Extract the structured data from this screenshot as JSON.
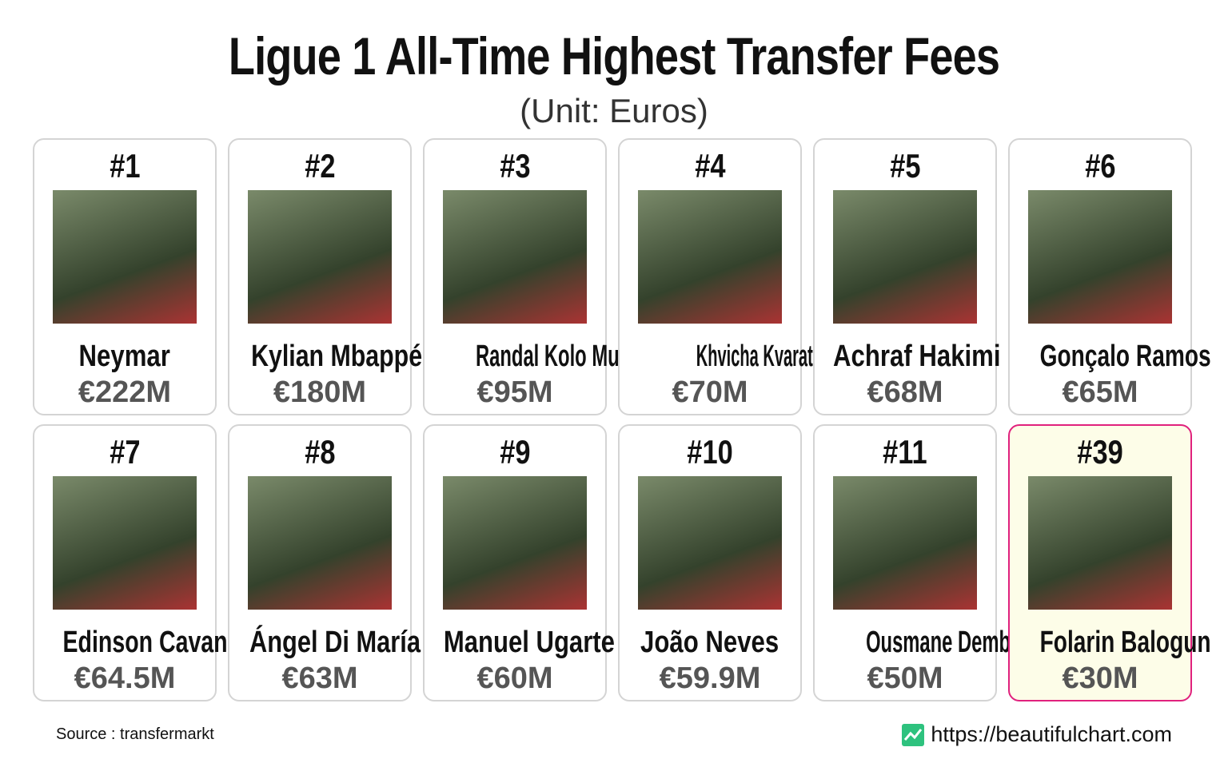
{
  "header": {
    "title": "Ligue 1 All-Time Highest Transfer Fees",
    "subtitle": "(Unit: Euros)"
  },
  "cards": [
    {
      "rank": "#1",
      "name": "Neymar",
      "fee": "€222M"
    },
    {
      "rank": "#2",
      "name": "Kylian Mbappé",
      "fee": "€180M"
    },
    {
      "rank": "#3",
      "name": "Randal Kolo Muani",
      "fee": "€95M"
    },
    {
      "rank": "#4",
      "name": "Khvicha Kvaratskhelia",
      "fee": "€70M"
    },
    {
      "rank": "#5",
      "name": "Achraf Hakimi",
      "fee": "€68M"
    },
    {
      "rank": "#6",
      "name": "Gonçalo Ramos",
      "fee": "€65M"
    },
    {
      "rank": "#7",
      "name": "Edinson Cavani",
      "fee": "€64.5M"
    },
    {
      "rank": "#8",
      "name": "Ángel Di María",
      "fee": "€63M"
    },
    {
      "rank": "#9",
      "name": "Manuel Ugarte",
      "fee": "€60M"
    },
    {
      "rank": "#10",
      "name": "João Neves",
      "fee": "€59.9M"
    },
    {
      "rank": "#11",
      "name": "Ousmane Dembélé",
      "fee": "€50M"
    },
    {
      "rank": "#39",
      "name": "Folarin Balogun",
      "fee": "€30M",
      "highlighted": true
    }
  ],
  "footer": {
    "source": "Source : transfermarkt",
    "website": "https://beautifulchart.com"
  }
}
